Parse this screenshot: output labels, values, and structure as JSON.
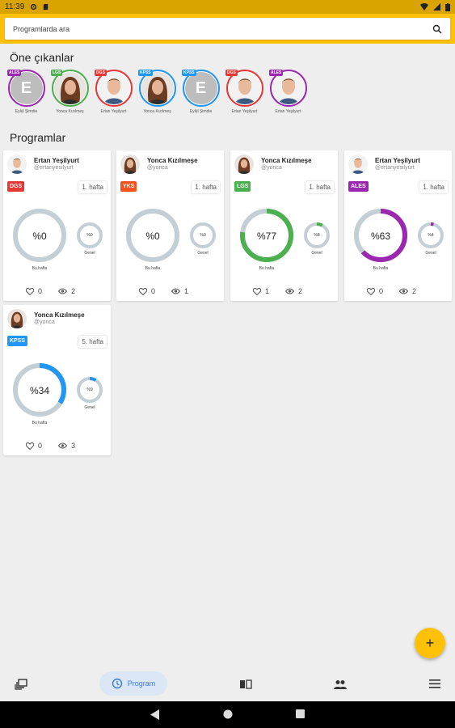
{
  "status": {
    "time": "11:39"
  },
  "search": {
    "placeholder": "Programlarda ara"
  },
  "featured": {
    "title": "Öne çıkanlar",
    "items": [
      {
        "badge": "ALES",
        "color": "#9c27b0",
        "name": "Eylül Şimdie",
        "avatar": "letter",
        "letter": "E"
      },
      {
        "badge": "LGS",
        "color": "#4caf50",
        "name": "Yonca Kızılmeş",
        "avatar": "woman"
      },
      {
        "badge": "DGS",
        "color": "#e53935",
        "name": "Ertan Yeşilyurt",
        "avatar": "man"
      },
      {
        "badge": "KPSS",
        "color": "#2196f3",
        "name": "Yonca Kızılmeş",
        "avatar": "woman"
      },
      {
        "badge": "KPSS",
        "color": "#2196f3",
        "name": "Eylül Şimdie",
        "avatar": "letter",
        "letter": "E"
      },
      {
        "badge": "DGS",
        "color": "#e53935",
        "name": "Ertan Yeşilyurt",
        "avatar": "man"
      },
      {
        "badge": "ALES",
        "color": "#9c27b0",
        "name": "Ertan Yeşilyurt",
        "avatar": "man"
      }
    ]
  },
  "programs": {
    "title": "Programlar",
    "cards": [
      {
        "name": "Ertan Yeşilyurt",
        "handle": "@ertanyesilyurt",
        "avatar": "man",
        "tag": "DGS",
        "color": "#e53935",
        "week": "1. hafta",
        "week_pct": 0,
        "overall_pct": 0,
        "week_label": "%0",
        "overall_label": "%0",
        "likes": "0",
        "views": "2"
      },
      {
        "name": "Yonca Kızılmeşe",
        "handle": "@yonca",
        "avatar": "woman",
        "tag": "YKS",
        "color": "#f4511e",
        "week": "1. hafta",
        "week_pct": 0,
        "overall_pct": 0,
        "week_label": "%0",
        "overall_label": "%0",
        "likes": "0",
        "views": "1"
      },
      {
        "name": "Yonca Kızılmeşe",
        "handle": "@yonca",
        "avatar": "woman",
        "tag": "LGS",
        "color": "#4caf50",
        "week": "1. hafta",
        "week_pct": 77,
        "overall_pct": 8,
        "week_label": "%77",
        "overall_label": "%8",
        "likes": "1",
        "views": "2"
      },
      {
        "name": "Ertan Yeşilyurt",
        "handle": "@ertanyesilyurt",
        "avatar": "man",
        "tag": "ALES",
        "color": "#9c27b0",
        "week": "1. hafta",
        "week_pct": 63,
        "overall_pct": 4,
        "week_label": "%63",
        "overall_label": "%4",
        "likes": "0",
        "views": "2"
      },
      {
        "name": "Yonca Kızılmeşe",
        "handle": "@yonca",
        "avatar": "woman",
        "tag": "KPSS",
        "color": "#2196f3",
        "week": "5. hafta",
        "week_pct": 34,
        "overall_pct": 9,
        "week_label": "%34",
        "overall_label": "%9",
        "likes": "0",
        "views": "3"
      }
    ],
    "week_caption": "Bu hafta",
    "overall_caption": "Genel"
  },
  "fab": {
    "label": "+"
  },
  "nav": {
    "active_label": "Program"
  }
}
